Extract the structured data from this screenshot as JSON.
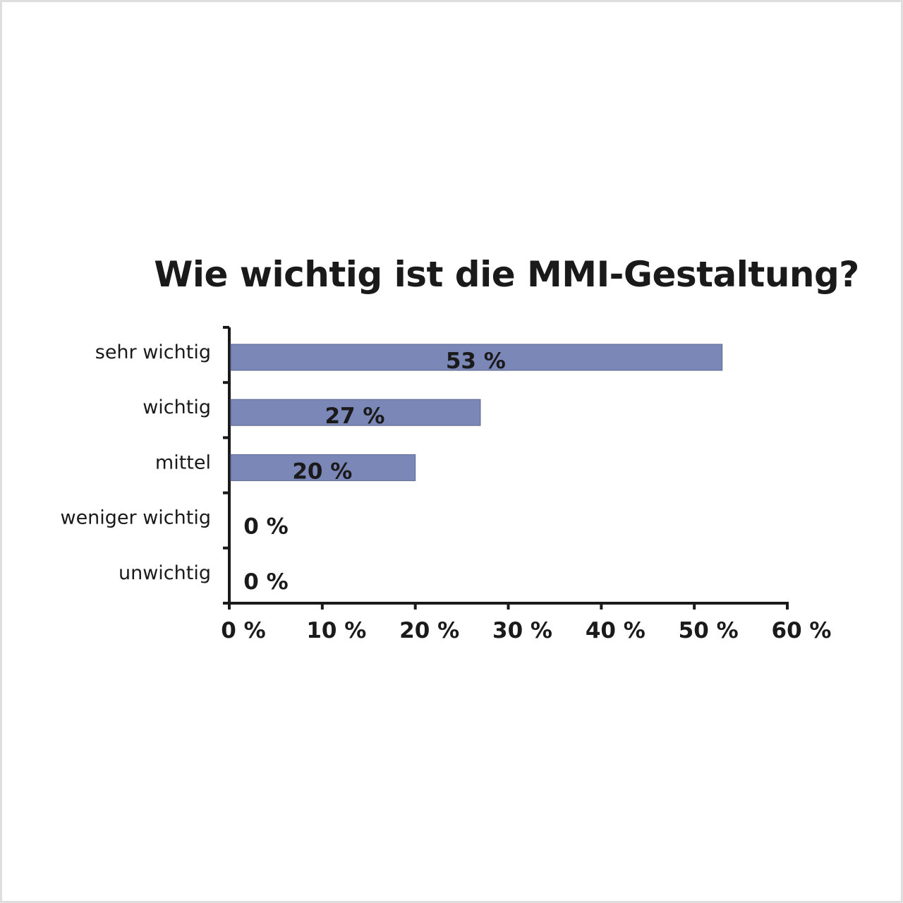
{
  "chart_data": {
    "type": "bar",
    "orientation": "horizontal",
    "title": "Wie wichtig ist die MMI-Gestaltung?",
    "categories": [
      "sehr wichtig",
      "wichtig",
      "mittel",
      "weniger wichtig",
      "unwichtig"
    ],
    "values": [
      53,
      27,
      20,
      0,
      0
    ],
    "value_labels": [
      "53 %",
      "27 %",
      "20 %",
      "0 %",
      "0 %"
    ],
    "xlim": [
      0,
      60
    ],
    "xticks": [
      0,
      10,
      20,
      30,
      40,
      50,
      60
    ],
    "xtick_labels": [
      "0 %",
      "10 %",
      "20 %",
      "30 %",
      "40 %",
      "50 %",
      "60 %"
    ],
    "xlabel": "",
    "ylabel": "",
    "grid": false,
    "legend": "none",
    "bar_color": "#7b87b6"
  }
}
